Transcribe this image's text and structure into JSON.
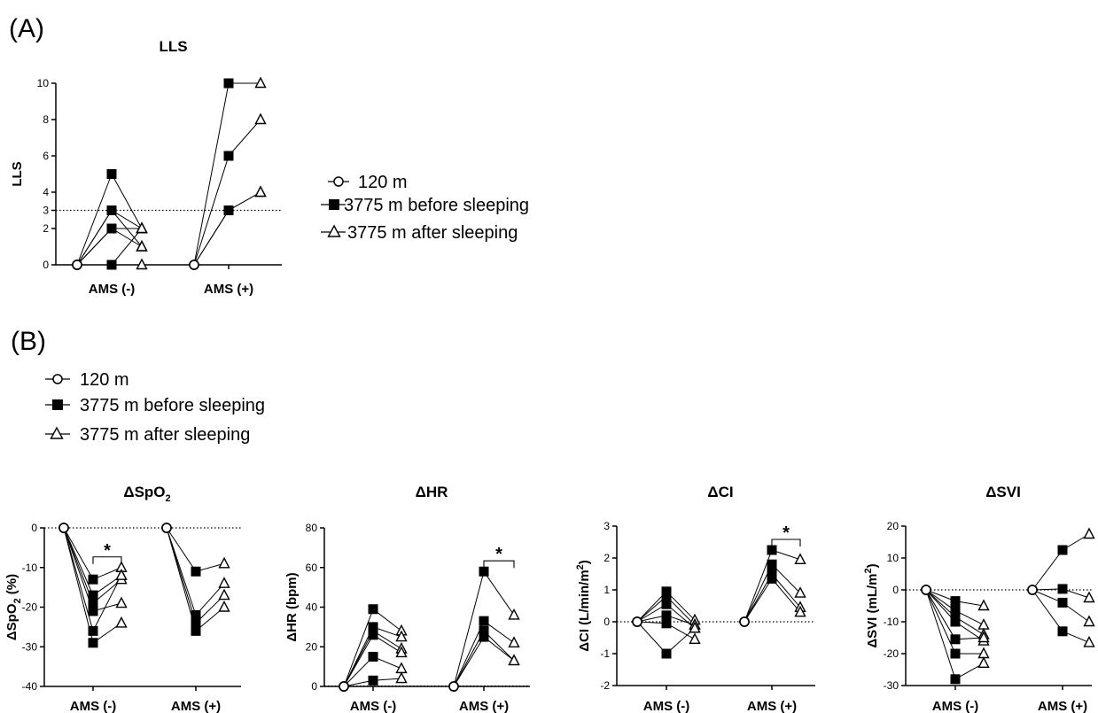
{
  "panel_labels": {
    "a": "(A)",
    "b": "(B)"
  },
  "legend": {
    "entries": [
      {
        "label": "120 m",
        "marker": "open-circle"
      },
      {
        "label": "3775 m before sleeping",
        "marker": "filled-square"
      },
      {
        "label": "3775 m after sleeping",
        "marker": "open-triangle"
      }
    ]
  },
  "chart_data": [
    {
      "id": "lls",
      "type": "line",
      "title": "LLS",
      "ylabel": "LLS",
      "ylim": [
        0,
        10
      ],
      "yticks": [
        0,
        2,
        3,
        4,
        6,
        8,
        10
      ],
      "reference_line": {
        "y": 3,
        "style": "dotted"
      },
      "categories": [
        "AMS (-)",
        "AMS (+)"
      ],
      "timepoints": [
        "120 m",
        "3775 m before sleeping",
        "3775 m after sleeping"
      ],
      "groups": [
        {
          "category": "AMS (-)",
          "subjects": [
            [
              0,
              5,
              2
            ],
            [
              0,
              3,
              2
            ],
            [
              0,
              3,
              1
            ],
            [
              0,
              2,
              2
            ],
            [
              0,
              2,
              1
            ],
            [
              0,
              0,
              2
            ],
            [
              0,
              0,
              0
            ]
          ]
        },
        {
          "category": "AMS (+)",
          "subjects": [
            [
              0,
              10,
              10
            ],
            [
              0,
              6,
              8
            ],
            [
              0,
              3,
              4
            ],
            [
              0,
              3,
              4
            ]
          ]
        }
      ]
    },
    {
      "id": "spo2",
      "type": "line",
      "title": "ΔSpO",
      "title_sub": "2",
      "ylabel": "ΔSpO",
      "ylabel_sub": "2",
      "ylabel_suffix": " (%)",
      "ylim": [
        -40,
        0
      ],
      "yticks": [
        0,
        -10,
        -20,
        -30,
        -40
      ],
      "reference_line": {
        "y": 0,
        "style": "dotted"
      },
      "categories": [
        "AMS (-)",
        "AMS (+)"
      ],
      "timepoints": [
        "120 m",
        "3775 m before sleeping",
        "3775 m after sleeping"
      ],
      "significance": [
        {
          "category": "AMS (-)",
          "label": "*"
        }
      ],
      "groups": [
        {
          "category": "AMS (-)",
          "subjects": [
            [
              0,
              -13,
              -10
            ],
            [
              0,
              -17,
              -12
            ],
            [
              0,
              -19,
              -13
            ],
            [
              0,
              -21,
              -19
            ],
            [
              0,
              -26,
              -12
            ],
            [
              0,
              -29,
              -24
            ]
          ]
        },
        {
          "category": "AMS (+)",
          "subjects": [
            [
              0,
              -11,
              -9
            ],
            [
              0,
              -22,
              -14
            ],
            [
              0,
              -24,
              -17
            ],
            [
              0,
              -26,
              -20
            ]
          ]
        }
      ]
    },
    {
      "id": "hr",
      "type": "line",
      "title": "ΔHR",
      "ylabel": "ΔHR (bpm)",
      "ylim": [
        0,
        80
      ],
      "yticks": [
        0,
        20,
        40,
        60,
        80
      ],
      "reference_line": {
        "y": 0,
        "style": "dotted"
      },
      "categories": [
        "AMS (-)",
        "AMS (+)"
      ],
      "timepoints": [
        "120 m",
        "3775 m before sleeping",
        "3775 m after sleeping"
      ],
      "significance": [
        {
          "category": "AMS (+)",
          "label": "*"
        }
      ],
      "groups": [
        {
          "category": "AMS (-)",
          "subjects": [
            [
              0,
              39,
              28
            ],
            [
              0,
              30,
              25
            ],
            [
              0,
              28,
              19
            ],
            [
              0,
              26,
              17
            ],
            [
              0,
              15,
              9
            ],
            [
              0,
              3,
              4
            ]
          ]
        },
        {
          "category": "AMS (+)",
          "subjects": [
            [
              0,
              58,
              36
            ],
            [
              0,
              33,
              22
            ],
            [
              0,
              28,
              13
            ],
            [
              0,
              25,
              13
            ]
          ]
        }
      ]
    },
    {
      "id": "ci",
      "type": "line",
      "title": "ΔCI",
      "ylabel": "ΔCI (L/min/m",
      "ylabel_sup": "2",
      "ylabel_suffix": ")",
      "ylim": [
        -2,
        3
      ],
      "yticks": [
        3,
        2,
        1,
        0,
        -1,
        -2
      ],
      "reference_line": {
        "y": 0,
        "style": "dotted"
      },
      "categories": [
        "AMS (-)",
        "AMS (+)"
      ],
      "timepoints": [
        "120 m",
        "3775 m before sleeping",
        "3775 m after sleeping"
      ],
      "significance": [
        {
          "category": "AMS (+)",
          "label": "*"
        }
      ],
      "groups": [
        {
          "category": "AMS (-)",
          "subjects": [
            [
              0,
              0.95,
              0.05
            ],
            [
              0,
              0.8,
              -0.1
            ],
            [
              0,
              0.55,
              -0.2
            ],
            [
              0,
              0.2,
              -0.1
            ],
            [
              0,
              -0.05,
              -0.55
            ],
            [
              0,
              -1.0,
              -0.2
            ]
          ]
        },
        {
          "category": "AMS (+)",
          "subjects": [
            [
              0,
              2.25,
              1.95
            ],
            [
              0,
              1.8,
              0.9
            ],
            [
              0,
              1.5,
              0.45
            ],
            [
              0,
              1.35,
              0.3
            ]
          ]
        }
      ]
    },
    {
      "id": "svi",
      "type": "line",
      "title": "ΔSVI",
      "ylabel": "ΔSVI (mL/m",
      "ylabel_sup": "2",
      "ylabel_suffix": ")",
      "ylim": [
        -30,
        20
      ],
      "yticks": [
        20,
        10,
        0,
        -10,
        -20,
        -30
      ],
      "reference_line": {
        "y": 0,
        "style": "dotted"
      },
      "categories": [
        "AMS (-)",
        "AMS (+)"
      ],
      "timepoints": [
        "120 m",
        "3775 m before sleeping",
        "3775 m after sleeping"
      ],
      "groups": [
        {
          "category": "AMS (-)",
          "subjects": [
            [
              0,
              -3.5,
              -5
            ],
            [
              0,
              -6.5,
              -11
            ],
            [
              0,
              -8.5,
              -14
            ],
            [
              0,
              -10,
              -16
            ],
            [
              0,
              -15.5,
              -15
            ],
            [
              0,
              -20,
              -20
            ],
            [
              0,
              -28,
              -23
            ]
          ]
        },
        {
          "category": "AMS (+)",
          "subjects": [
            [
              0,
              12.5,
              17.5
            ],
            [
              0,
              0.3,
              -2.5
            ],
            [
              0,
              -4,
              -10
            ],
            [
              0,
              -13,
              -16.5
            ]
          ]
        }
      ]
    }
  ]
}
